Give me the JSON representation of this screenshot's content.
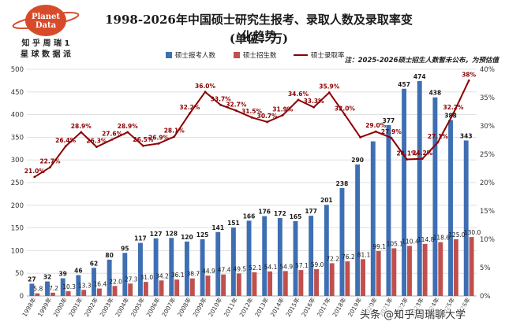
{
  "logo": {
    "top_text": "Planet",
    "bottom_text": "Data",
    "line1": "知 乎 周 瑞 1",
    "line2": "星 球 数 据 派"
  },
  "title": "1998-2026年中国硕士研究生报考、录取人数及录取率变化趋势",
  "subtitle": "(单位：万)",
  "note": "注：2025-2026硕士招生人数暂未公布，为预估值",
  "watermark": "头条 @知乎周瑞聊大学",
  "colors": {
    "applicants": "#3e6fb3",
    "admissions": "#c0504d",
    "rate": "#8b0000",
    "logo": "#d84b2a"
  },
  "chart_data": {
    "type": "bar",
    "categories": [
      "1998年",
      "1999年",
      "2000年",
      "2001年",
      "2002年",
      "2003年",
      "2004年",
      "2005年",
      "2006年",
      "2007年",
      "2008年",
      "2009年",
      "2010年",
      "2011年",
      "2012年",
      "2013年",
      "2014年",
      "2015年",
      "2016年",
      "2017年",
      "2018年",
      "2019年",
      "2020年",
      "2021年",
      "2022年",
      "2023年",
      "2024年",
      "2025年",
      "2026年"
    ],
    "series": [
      {
        "name": "硕士报考人数",
        "type": "bar",
        "axis": "left",
        "values": [
          27,
          32,
          39,
          46,
          62,
          80,
          95,
          117,
          127,
          128,
          120,
          125,
          141,
          151,
          166,
          176,
          172,
          165,
          177,
          201,
          238,
          290,
          341,
          377,
          457,
          474,
          438,
          388,
          343
        ],
        "labels": [
          "27",
          "32",
          "39",
          "46",
          "62",
          "80",
          "95",
          "117",
          "127",
          "128",
          "120",
          "125",
          "141",
          "151",
          "166",
          "176",
          "172",
          "165",
          "177",
          "201",
          "238",
          "290",
          "",
          "377",
          "457",
          "474",
          "438",
          "388",
          "343"
        ]
      },
      {
        "name": "硕士招生数",
        "type": "bar",
        "axis": "left",
        "values": [
          5.8,
          7.2,
          10.3,
          13.3,
          16.4,
          22.0,
          27.3,
          31.0,
          34.2,
          36.1,
          38.7,
          44.9,
          47.4,
          49.5,
          52.1,
          54.1,
          54.9,
          57.1,
          59.0,
          72.2,
          76.2,
          81.1,
          99.1,
          105.1,
          110.4,
          114.8,
          118.6,
          125.0,
          130.0
        ],
        "labels": [
          "5.8",
          "7.2",
          "10.3",
          "13.3",
          "16.4",
          "22.0",
          "27.3",
          "31.0",
          "34.2",
          "36.1",
          "38.7",
          "44.9",
          "47.4",
          "49.5",
          "52.1",
          "54.1",
          "54.9",
          "57.1",
          "59.0",
          "72.2",
          "76.2",
          "81.1",
          "99.1",
          "105.1",
          "110.4",
          "114.8",
          "118.6",
          "125.0",
          "130.0"
        ]
      },
      {
        "name": "硕士录取率",
        "type": "line",
        "axis": "right",
        "values": [
          21.0,
          22.7,
          26.4,
          28.9,
          26.3,
          27.6,
          28.9,
          26.5,
          26.9,
          28.1,
          32.2,
          36.0,
          33.7,
          32.7,
          31.5,
          30.7,
          31.9,
          34.6,
          33.3,
          35.9,
          32.0,
          28.0,
          29.0,
          27.9,
          24.1,
          24.2,
          27.1,
          32.2,
          38.0
        ],
        "labels": [
          "21.0%",
          "22.7%",
          "26.4%",
          "28.9%",
          "26.3%",
          "27.6%",
          "28.9%",
          "26.5%",
          "26.9%",
          "28.1%",
          "32.2%",
          "36.0%",
          "33.7%",
          "32.7%",
          "31.5%",
          "30.7%",
          "31.9%",
          "34.6%",
          "33.3%",
          "35.9%",
          "32.0%",
          "",
          "29.0%",
          "27.9%",
          "24.1%",
          "24.2%",
          "27.1%",
          "32.2%",
          "38%"
        ]
      }
    ],
    "y_left": {
      "min": 0,
      "max": 500,
      "step": 50
    },
    "y_right": {
      "min": 0,
      "max": 40,
      "step": 5,
      "suffix": "%"
    },
    "legend": "top-center"
  }
}
